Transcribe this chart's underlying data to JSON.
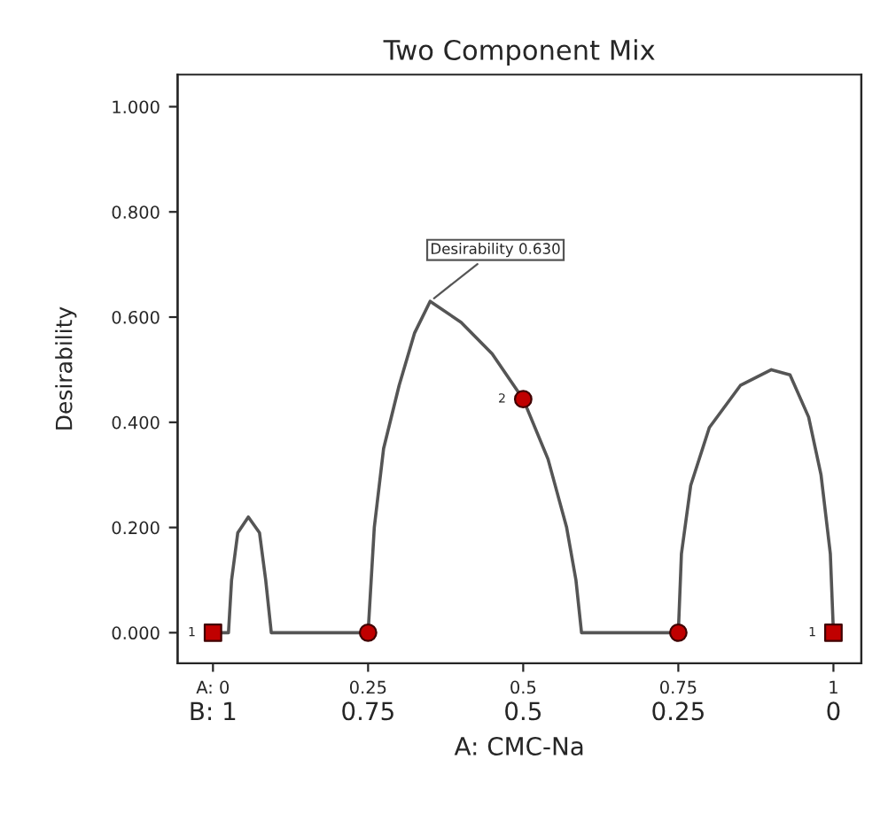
{
  "chart_data": {
    "type": "line",
    "title": "Two Component Mix",
    "xlabel": "A: CMC-Na",
    "ylabel": "Desirability",
    "xlim": [
      -0.057,
      1.045
    ],
    "ylim": [
      -0.058,
      1.061
    ],
    "xticks": [
      {
        "value": 0,
        "label": "A: 0"
      },
      0.25,
      0.5,
      0.75,
      1
    ],
    "x2lim": [
      1.057,
      -0.045
    ],
    "x2ticks": [
      {
        "value": 1,
        "label": "B: 1"
      },
      0.75,
      0.5,
      0.25,
      0
    ],
    "yticks": [
      {
        "value": 0,
        "label": "0.000"
      },
      {
        "value": 0.2,
        "label": "0.200"
      },
      {
        "value": 0.4,
        "label": "0.400"
      },
      {
        "value": 0.6,
        "label": "0.600"
      },
      {
        "value": 0.8,
        "label": "0.800"
      },
      {
        "value": 1,
        "label": "1.000"
      }
    ],
    "grid": false,
    "legend": false,
    "series": [
      {
        "color": "#555555",
        "marker": "none",
        "line_style": "solid",
        "x": [
          0,
          0.025,
          0.03,
          0.04,
          0.057,
          0.075,
          0.085,
          0.094,
          0.25,
          0.26,
          0.275,
          0.3,
          0.325,
          0.35,
          0.4,
          0.45,
          0.5,
          0.54,
          0.57,
          0.585,
          0.594,
          0.75,
          0.755,
          0.77,
          0.8,
          0.85,
          0.9,
          0.93,
          0.96,
          0.98,
          0.995,
          1
        ],
        "values": [
          0,
          0,
          0.1,
          0.19,
          0.22,
          0.19,
          0.1,
          0,
          0,
          0.2,
          0.35,
          0.47,
          0.57,
          0.63,
          0.59,
          0.53,
          0.444,
          0.33,
          0.2,
          0.1,
          0,
          0,
          0.15,
          0.28,
          0.39,
          0.47,
          0.5,
          0.49,
          0.41,
          0.3,
          0.15,
          0
        ]
      },
      {
        "type": "scatter",
        "color": "#c00000",
        "marker": "square",
        "x": [
          0,
          1
        ],
        "values": [
          0,
          0
        ]
      },
      {
        "type": "scatter",
        "color": "#c00000",
        "marker": "circle",
        "x": [
          0.25,
          0.5,
          0.75
        ],
        "values": [
          0,
          0.444,
          0
        ]
      }
    ],
    "annotations": [
      {
        "text": "Desirability 0.630",
        "x": 0.35,
        "y": 0.63
      },
      {
        "text": "1",
        "x": 0,
        "y": 0
      },
      {
        "text": "2",
        "x": 0.5,
        "y": 0.444
      },
      {
        "text": "1",
        "x": 1,
        "y": 0
      }
    ]
  }
}
